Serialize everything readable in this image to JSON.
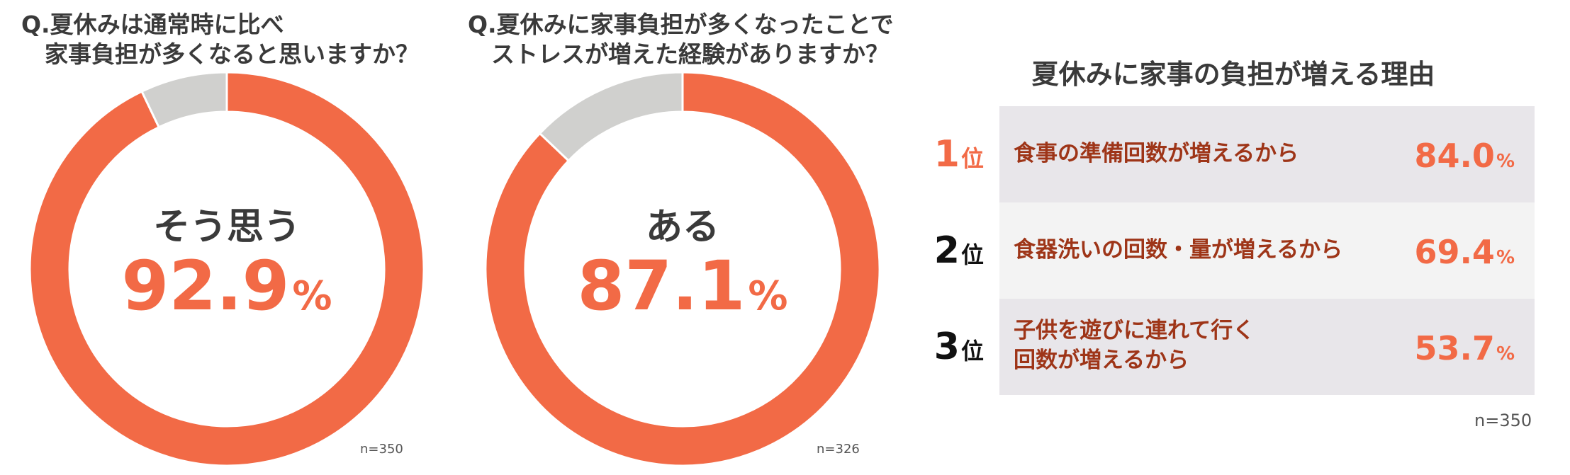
{
  "q1": {
    "title": "Q.夏休みは通常時に比べ\n　家事負担が多くなると思いますか？",
    "center_label": "そう思う",
    "value": "92.9",
    "unit": "%",
    "n": "n=350"
  },
  "q2": {
    "title": "Q.夏休みに家事負担が多くなったことで\n　ストレスが増えた経験がありますか？",
    "center_label": "ある",
    "value": "87.1",
    "unit": "%",
    "n": "n=326"
  },
  "reasons": {
    "title": "夏休みに家事の負担が増える理由",
    "items": [
      {
        "rank": "1",
        "rank_suffix": "位",
        "label": "食事の準備回数が増えるから",
        "value": "84.0",
        "unit": "%"
      },
      {
        "rank": "2",
        "rank_suffix": "位",
        "label": "食器洗いの回数・量が増えるから",
        "value": "69.4",
        "unit": "%"
      },
      {
        "rank": "3",
        "rank_suffix": "位",
        "label": "子供を遊びに連れて行く\n回数が増えるから",
        "value": "53.7",
        "unit": "%"
      }
    ],
    "n": "n=350"
  },
  "colors": {
    "accent": "#f26a46",
    "remainder": "#d0d0ce",
    "text_dark": "#3a3a3a",
    "reason_text": "#9e3518",
    "row_bg_odd": "#e8e6ea",
    "row_bg_even": "#f3f3f3"
  },
  "chart_data": [
    {
      "type": "pie",
      "title": "Q.夏休みは通常時に比べ家事負担が多くなると思いますか？",
      "categories": [
        "そう思う",
        ""
      ],
      "values": [
        92.9,
        7.1
      ]
    },
    {
      "type": "pie",
      "title": "Q.夏休みに家事負担が多くなったことでストレスが増えた経験がありますか？",
      "categories": [
        "ある",
        ""
      ],
      "values": [
        87.1,
        12.9
      ]
    },
    {
      "type": "table",
      "title": "夏休みに家事の負担が増える理由",
      "categories": [
        "食事の準備回数が増えるから",
        "食器洗いの回数・量が増えるから",
        "子供を遊びに連れて行く回数が増えるから"
      ],
      "values": [
        84.0,
        69.4,
        53.7
      ]
    }
  ]
}
